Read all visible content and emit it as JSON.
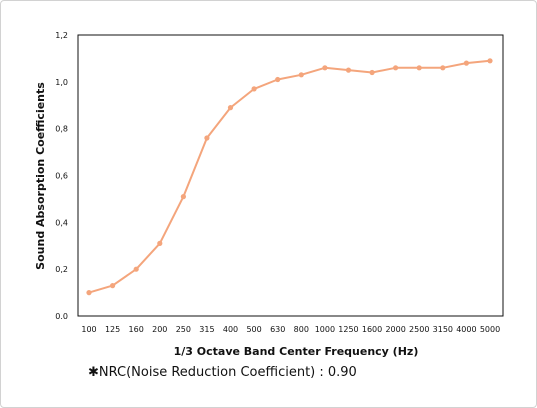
{
  "chart_data": {
    "type": "line",
    "xlabel": "1/3 Octave Band Center Frequency (Hz)",
    "ylabel": "Sound Absorption Coefficients",
    "categories": [
      "100",
      "125",
      "160",
      "200",
      "250",
      "315",
      "400",
      "500",
      "630",
      "800",
      "1000",
      "1250",
      "1600",
      "2000",
      "2500",
      "3150",
      "4000",
      "5000"
    ],
    "series": [
      {
        "values": [
          0.1,
          0.13,
          0.2,
          0.31,
          0.51,
          0.76,
          0.89,
          0.97,
          1.01,
          1.03,
          1.06,
          1.05,
          1.04,
          1.06,
          1.06,
          1.06,
          1.08,
          1.09
        ],
        "color": "#f4a57c"
      }
    ],
    "ylim": [
      0.0,
      1.2
    ],
    "yticks": [
      "0.0",
      "0,2",
      "0,4",
      "0,6",
      "0,8",
      "1,0",
      "1,2"
    ],
    "grid": false,
    "legend": "none"
  },
  "note": {
    "marker": "✱",
    "text": "NRC(Noise Reduction Coefficient) : 0.90"
  }
}
